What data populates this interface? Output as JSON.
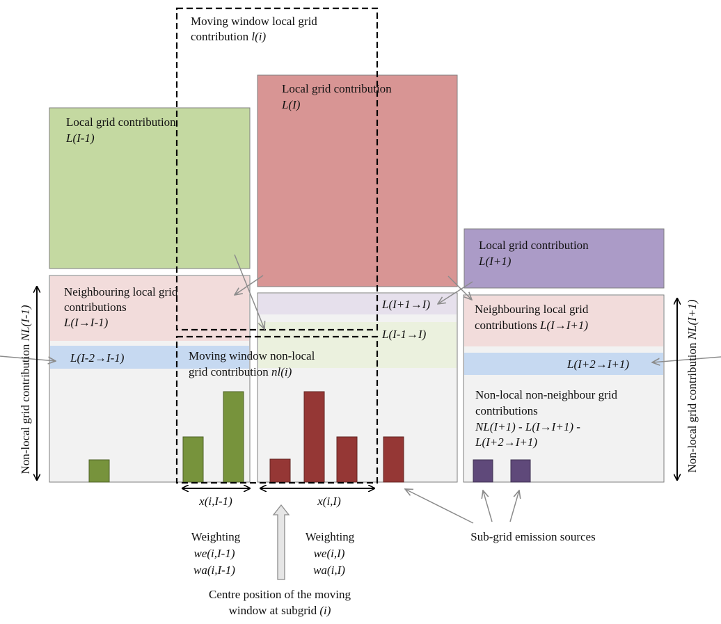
{
  "colors": {
    "green_block": "#c4d9a1",
    "red_block": "#d89594",
    "purple_block": "#ab9bc7",
    "pink_band": "#f2dcdb",
    "blue_band": "#c6d9f1",
    "grey_base": "#f2f2f2",
    "light_purple_band": "#e6e0ec",
    "light_green_band": "#ebf1de",
    "green_bar": "#77933c",
    "red_bar": "#953735",
    "purple_bar": "#5f497a",
    "arrow_grey": "#8c8c8c"
  },
  "labels": {
    "moving_window_local_1": "Moving window local grid",
    "moving_window_local_2": "contribution ",
    "moving_window_local_sym": "l(i)",
    "local_left_1": "Local grid contribution",
    "local_left_sym": "L(I-1)",
    "local_mid_1": "Local grid contribution",
    "local_mid_sym": "L(I)",
    "local_right_1": "Local grid contribution",
    "local_right_sym": "L(I+1)",
    "neigh_left_1": "Neighbouring local grid",
    "neigh_left_2": "contributions",
    "neigh_left_sym": "L(I→I-1)",
    "blue_left_sym": "L(I-2→I-1)",
    "mid_purple_sym": "L(I+1→I)",
    "mid_green_sym": "L(I-1→I)",
    "neigh_right_1": "Neighbouring local grid",
    "neigh_right_2": "contributions ",
    "neigh_right_sym": "L(I→I+1)",
    "blue_right_sym": "L(I+2→I+1)",
    "moving_window_nonlocal_1": "Moving window non-local",
    "moving_window_nonlocal_2": "grid contribution ",
    "moving_window_nonlocal_sym": "nl(i)",
    "nonlocal_nonneigh_1": "Non-local non-neighbour grid",
    "nonlocal_nonneigh_2": "contributions",
    "nonlocal_nonneigh_3": "NL(I+1) - L(I→I+1) -",
    "nonlocal_nonneigh_4": "L(I+2→I+1)",
    "left_axis_text": "Non-local grid contribution ",
    "left_axis_sym": "NL(I-1)",
    "right_axis_text": "Non-local grid contribution ",
    "right_axis_sym": "NL(I+1)",
    "dist_left": "x(i,I-1)",
    "dist_mid": "x(i,I)",
    "weight_left_title": "Weighting",
    "weight_left_we": "we(i,I-1)",
    "weight_left_wa": "wa(i,I-1)",
    "weight_mid_title": "Weighting",
    "weight_mid_we": "we(i,I)",
    "weight_mid_wa": "wa(i,I)",
    "centre_1": "Centre position of the moving",
    "centre_2": "window at subgrid ",
    "centre_sym": "(i)",
    "subgrid_sources": "Sub-grid emission sources"
  }
}
